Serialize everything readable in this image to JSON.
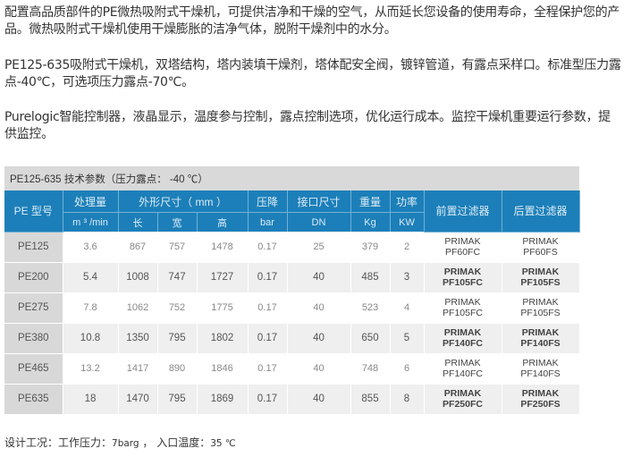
{
  "paragraphs": [
    "配置高品质部件的PE微热吸附式干燥机，可提供洁净和干燥的空气，从而延长您设备的使用寿命，全程保护您的产品。微热吸附式干燥机使用干燥膨胀的洁净气体，脱附干燥剂中的水分。",
    "PE125-635吸附式干燥机，双塔结构，塔内装填干燥剂，塔体配安全阀，镀锌管道，有露点采样口。标准型压力露点-40℃，可选项压力露点-70℃。",
    "Purelogic智能控制器，液晶显示，温度参与控制，露点控制选项，优化运行成本。监控干燥机重要运行参数，提供监控。"
  ],
  "table": {
    "title": "PE125-635 技术参数（压力露点： -40 ℃）",
    "header": {
      "model": "PE 型号",
      "flow": "处理量",
      "flow_unit": "m ³ /min",
      "dims": "外形尺寸（ mm ）",
      "length": "长",
      "width": "宽",
      "height": "高",
      "pressure_drop": "压降",
      "pressure_drop_unit": "bar",
      "connection": "接口尺寸",
      "connection_unit": "DN",
      "weight": "重量",
      "weight_unit": "Kg",
      "power": "功率",
      "power_unit": "KW",
      "pre_filter": "前置过滤器",
      "post_filter": "后置过滤器"
    },
    "rows": [
      {
        "model": "PE125",
        "flow": "3.6",
        "length": "867",
        "width": "757",
        "height": "1478",
        "dp": "0.17",
        "dn": "25",
        "weight": "379",
        "power": "2",
        "pre1": "PRIMAK",
        "pre2": "PF60FC",
        "post1": "PRIMAK",
        "post2": "PF60FS"
      },
      {
        "model": "PE200",
        "flow": "5.4",
        "length": "1008",
        "width": "747",
        "height": "1727",
        "dp": "0.17",
        "dn": "40",
        "weight": "485",
        "power": "3",
        "pre1": "PRIMAK",
        "pre2": "PF105FC",
        "post1": "PRIMAK",
        "post2": "PF105FS"
      },
      {
        "model": "PE275",
        "flow": "7.8",
        "length": "1062",
        "width": "752",
        "height": "1775",
        "dp": "0.17",
        "dn": "40",
        "weight": "523",
        "power": "4",
        "pre1": "PRIMAK",
        "pre2": "PF105FC",
        "post1": "PRIMAK",
        "post2": "PF105FS"
      },
      {
        "model": "PE380",
        "flow": "10.8",
        "length": "1350",
        "width": "795",
        "height": "1802",
        "dp": "0.17",
        "dn": "40",
        "weight": "650",
        "power": "5",
        "pre1": "PRIMAK",
        "pre2": "PF140FC",
        "post1": "PRIMAK",
        "post2": "PF140FS"
      },
      {
        "model": "PE465",
        "flow": "13.2",
        "length": "1417",
        "width": "890",
        "height": "1846",
        "dp": "0.17",
        "dn": "40",
        "weight": "748",
        "power": "6",
        "pre1": "PRIMAK",
        "pre2": "PF140FC",
        "post1": "PRIMAK",
        "post2": "PF140FS"
      },
      {
        "model": "PE635",
        "flow": "18",
        "length": "1470",
        "width": "795",
        "height": "1869",
        "dp": "0.17",
        "dn": "40",
        "weight": "855",
        "power": "8",
        "pre1": "PRIMAK",
        "pre2": "PF250FC",
        "post1": "PRIMAK",
        "post2": "PF250FS"
      }
    ]
  },
  "note": {
    "label": "设计工况：工作压力：",
    "pressure": "7barg",
    "sep": " ， 入口温度：",
    "temp": "35 ℃"
  },
  "colors": {
    "header_blue": "#1c7fb9",
    "title_gray": "#d9d9d9",
    "model_col_gray": "#d8d8d8",
    "alt_row": "#efefef"
  }
}
